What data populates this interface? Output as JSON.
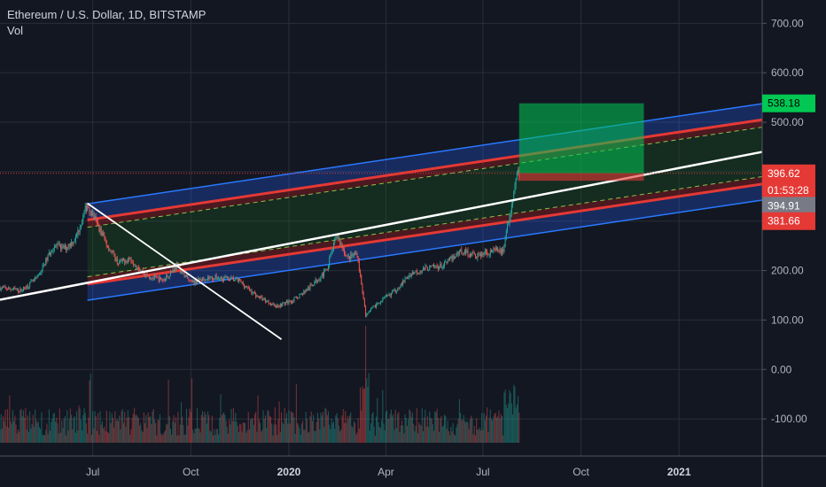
{
  "chart_data": {
    "type": "candlestick",
    "title": "Ethereum / U.S. Dollar, 1D, BITSTAMP",
    "indicator": "Vol",
    "y_ticks": [
      700,
      600,
      500,
      400,
      300,
      200,
      100,
      0,
      -100
    ],
    "y_tick_labels": [
      "700.00",
      "600.00",
      "500.00",
      "400.00",
      "300.00",
      "200.00",
      "100.00",
      "0.00",
      "-100.00"
    ],
    "ylim": [
      -175,
      740
    ],
    "x_ticks": [
      {
        "label": "Jul",
        "date": "2019-07-01",
        "bold": false
      },
      {
        "label": "Oct",
        "date": "2019-10-01",
        "bold": false
      },
      {
        "label": "2020",
        "date": "2020-01-01",
        "bold": true
      },
      {
        "label": "Apr",
        "date": "2020-04-01",
        "bold": false
      },
      {
        "label": "Jul",
        "date": "2020-07-01",
        "bold": false
      },
      {
        "label": "Oct",
        "date": "2020-10-01",
        "bold": false
      },
      {
        "label": "2021",
        "date": "2021-01-01",
        "bold": true
      }
    ],
    "xlim": [
      "2019-04-05",
      "2021-03-20"
    ],
    "price_path": [
      [
        "2019-04-05",
        165
      ],
      [
        "2019-04-25",
        160
      ],
      [
        "2019-05-10",
        185
      ],
      [
        "2019-05-25",
        250
      ],
      [
        "2019-06-05",
        245
      ],
      [
        "2019-06-15",
        265
      ],
      [
        "2019-06-26",
        335
      ],
      [
        "2019-07-05",
        295
      ],
      [
        "2019-07-15",
        250
      ],
      [
        "2019-07-25",
        215
      ],
      [
        "2019-08-05",
        225
      ],
      [
        "2019-08-20",
        190
      ],
      [
        "2019-09-05",
        180
      ],
      [
        "2019-09-18",
        210
      ],
      [
        "2019-10-01",
        175
      ],
      [
        "2019-10-15",
        185
      ],
      [
        "2019-11-01",
        185
      ],
      [
        "2019-11-15",
        180
      ],
      [
        "2019-12-01",
        150
      ],
      [
        "2019-12-20",
        128
      ],
      [
        "2020-01-05",
        140
      ],
      [
        "2020-01-20",
        165
      ],
      [
        "2020-02-05",
        200
      ],
      [
        "2020-02-15",
        272
      ],
      [
        "2020-02-25",
        225
      ],
      [
        "2020-03-05",
        235
      ],
      [
        "2020-03-13",
        110
      ],
      [
        "2020-03-25",
        135
      ],
      [
        "2020-04-10",
        160
      ],
      [
        "2020-04-25",
        195
      ],
      [
        "2020-05-10",
        205
      ],
      [
        "2020-05-25",
        210
      ],
      [
        "2020-06-10",
        240
      ],
      [
        "2020-06-25",
        230
      ],
      [
        "2020-07-10",
        240
      ],
      [
        "2020-07-20",
        240
      ],
      [
        "2020-07-27",
        320
      ],
      [
        "2020-08-01",
        395
      ],
      [
        "2020-08-04",
        394.91
      ]
    ],
    "volume_peak_date": "2020-03-13",
    "drawings": {
      "regression_channel": {
        "start": "2019-06-26",
        "end": "2021-03-20",
        "center_start": 237.5,
        "center_end": 440,
        "outer_offset": 97.5,
        "inner_offset": 65,
        "dashed_offset": 50
      },
      "trend_line": {
        "start": [
          "2019-04-05",
          141
        ],
        "end": [
          "2021-03-20",
          440
        ]
      },
      "diagonal_line": {
        "start": [
          "2019-06-26",
          336
        ],
        "end": [
          "2019-12-25",
          61
        ]
      },
      "target_box": {
        "start": "2020-08-04",
        "end": "2020-11-29",
        "top": 538.18,
        "entry": 396.62,
        "stop": 381.66
      }
    },
    "price_tags": [
      {
        "value": "538.18",
        "price": 538.18,
        "style": "green"
      },
      {
        "value": "396.62",
        "price": 396.62,
        "style": "red"
      },
      {
        "value": "01:53:28",
        "price": 362,
        "style": "red"
      },
      {
        "value": "394.91",
        "price": 331,
        "style": "gray"
      },
      {
        "value": "381.66",
        "price": 300,
        "style": "red"
      }
    ],
    "current_price": 394.91
  },
  "colors": {
    "background": "#131722",
    "grid": "#2a2e39",
    "up_candle": "#26a69a",
    "down_candle": "#ef5350",
    "channel_blue": "#2962ff",
    "channel_red": "#e53935",
    "target_green": "#00c853",
    "trend_white": "#ffffff"
  }
}
